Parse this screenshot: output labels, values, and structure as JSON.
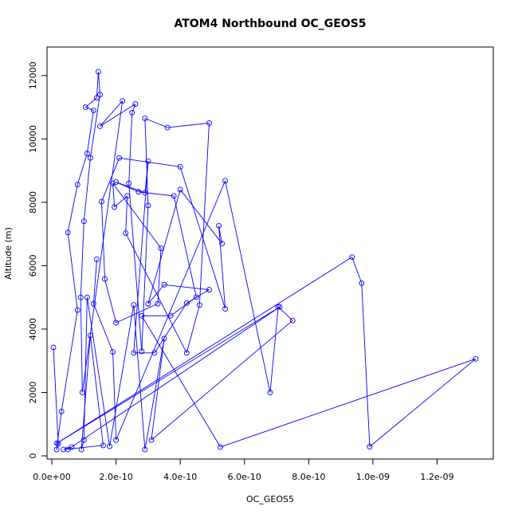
{
  "chart_data": {
    "type": "line",
    "title": "ATOM4 Northbound OC_GEOS5",
    "xlabel": "OC_GEOS5",
    "ylabel": "Altitude (m)",
    "xlim": [
      -1.5e-11,
      1.375e-09
    ],
    "ylim": [
      -100,
      12900
    ],
    "xticks": [
      0,
      2e-10,
      4e-10,
      6e-10,
      8e-10,
      1e-09,
      1.2e-09
    ],
    "xtick_labels": [
      "0.0e+00",
      "2.0e-10",
      "4.0e-10",
      "6.0e-10",
      "8.0e-10",
      "1.0e-09",
      "1.2e-09"
    ],
    "yticks": [
      0,
      2000,
      4000,
      6000,
      8000,
      10000,
      12000
    ],
    "ytick_labels": [
      "0",
      "2000",
      "4000",
      "6000",
      "8000",
      "10000",
      "12000"
    ],
    "marker": "open-circle",
    "grid": false,
    "series": [
      {
        "color": "#0000ff",
        "points": [
          [
            5e-12,
            3420
          ],
          [
            2e-11,
            380
          ],
          [
            1.5e-11,
            200
          ],
          [
            3e-11,
            1400
          ],
          [
            8e-11,
            4600
          ],
          [
            5e-11,
            7050
          ],
          [
            8e-11,
            8560
          ],
          [
            1.1e-10,
            9540
          ],
          [
            1.3e-10,
            10900
          ],
          [
            1.05e-10,
            11000
          ],
          [
            1.4e-10,
            11300
          ],
          [
            1.45e-10,
            12120
          ],
          [
            1.5e-10,
            11400
          ],
          [
            1.2e-10,
            9400
          ],
          [
            1e-10,
            7400
          ],
          [
            9e-11,
            5000
          ],
          [
            9.5e-11,
            2000
          ],
          [
            2.2e-10,
            11200
          ],
          [
            1.5e-10,
            10400
          ],
          [
            2.6e-10,
            11100
          ],
          [
            2.5e-10,
            10830
          ],
          [
            2.4e-10,
            8600
          ],
          [
            2.8e-10,
            3300
          ],
          [
            3e-10,
            7900
          ],
          [
            2.9e-10,
            10650
          ],
          [
            3.6e-10,
            10360
          ],
          [
            4.9e-10,
            10500
          ],
          [
            4.6e-10,
            4760
          ],
          [
            4.2e-10,
            3250
          ],
          [
            2.3e-10,
            7030
          ],
          [
            2.35e-10,
            8200
          ],
          [
            1.95e-10,
            7850
          ],
          [
            1.9e-10,
            8600
          ],
          [
            3.4e-10,
            6550
          ],
          [
            3.3e-10,
            4800
          ],
          [
            2e-10,
            4200
          ],
          [
            1.65e-10,
            5580
          ],
          [
            1.55e-10,
            8020
          ],
          [
            2.1e-10,
            9400
          ],
          [
            4e-10,
            9120
          ],
          [
            5.4e-10,
            4640
          ],
          [
            5.2e-10,
            7260
          ],
          [
            5.3e-10,
            6700
          ],
          [
            4e-10,
            8400
          ],
          [
            3e-10,
            4800
          ],
          [
            3.5e-10,
            5400
          ],
          [
            4.9e-10,
            5240
          ],
          [
            4.2e-10,
            4820
          ],
          [
            3.2e-10,
            3250
          ],
          [
            2.55e-10,
            3250
          ],
          [
            3e-10,
            9300
          ],
          [
            2.9e-10,
            8300
          ],
          [
            2e-10,
            8640
          ],
          [
            2.7e-10,
            8330
          ],
          [
            3.8e-10,
            8200
          ],
          [
            4.5e-10,
            5010
          ],
          [
            3.7e-10,
            4420
          ],
          [
            2.8e-10,
            4420
          ],
          [
            5.25e-10,
            280
          ],
          [
            1.32e-09,
            3060
          ],
          [
            9.9e-10,
            290
          ],
          [
            9.65e-10,
            5450
          ],
          [
            9.35e-10,
            6270
          ],
          [
            1.6e-11,
            400
          ],
          [
            7.1e-10,
            4700
          ],
          [
            5e-11,
            200
          ],
          [
            6.2e-11,
            280
          ],
          [
            3.6e-11,
            200
          ],
          [
            1.6e-10,
            330
          ],
          [
            1.2e-10,
            3800
          ],
          [
            9.2e-11,
            200
          ],
          [
            1e-10,
            500
          ],
          [
            1.1e-10,
            5000
          ],
          [
            1.8e-10,
            300
          ],
          [
            2.55e-10,
            4760
          ],
          [
            2.9e-10,
            200
          ],
          [
            3.5e-10,
            3700
          ],
          [
            3.1e-10,
            500
          ],
          [
            7.5e-10,
            4270
          ],
          [
            7.05e-10,
            4700
          ],
          [
            6.8e-10,
            2000
          ],
          [
            5.4e-10,
            8680
          ],
          [
            2e-10,
            500
          ],
          [
            1.9e-10,
            3280
          ],
          [
            1.3e-10,
            4800
          ],
          [
            1.4e-10,
            6200
          ]
        ]
      }
    ]
  }
}
